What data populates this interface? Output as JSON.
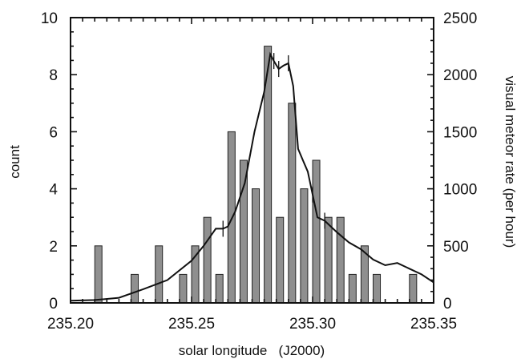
{
  "chart_data": {
    "type": "bar+line",
    "xlabel": "solar longitude   (J2000)",
    "ylabel_left": "count",
    "ylabel_right": "visual meteor rate (per hour)",
    "xlim": [
      235.2,
      235.35
    ],
    "ylim_left": [
      0,
      10
    ],
    "ylim_right": [
      0,
      2500
    ],
    "x_ticks": [
      "235.20",
      "235.25",
      "235.30",
      "235.35"
    ],
    "y_left_ticks": [
      "0",
      "2",
      "4",
      "6",
      "8",
      "10"
    ],
    "y_right_ticks": [
      "0",
      "500",
      "1000",
      "1500",
      "2000",
      "2500"
    ],
    "bars": {
      "name": "count",
      "x": [
        235.2115,
        235.2265,
        235.2365,
        235.2465,
        235.2515,
        235.2565,
        235.2615,
        235.2665,
        235.2715,
        235.2765,
        235.2815,
        235.2865,
        235.2915,
        235.2965,
        235.3015,
        235.3065,
        235.3115,
        235.3165,
        235.3215,
        235.3265,
        235.3415
      ],
      "values": [
        2,
        1,
        2,
        1,
        2,
        3,
        1,
        6,
        5,
        4,
        9,
        3,
        7,
        4,
        5,
        3,
        3,
        1,
        2,
        1,
        1
      ]
    },
    "rate": {
      "name": "visual meteor rate",
      "x": [
        235.2,
        235.21,
        235.22,
        235.23,
        235.24,
        235.25,
        235.255,
        235.26,
        235.263,
        235.265,
        235.268,
        235.272,
        235.276,
        235.28,
        235.2825,
        235.284,
        235.286,
        235.288,
        235.29,
        235.292,
        235.294,
        235.296,
        235.298,
        235.3,
        235.302,
        235.305,
        235.31,
        235.315,
        235.32,
        235.325,
        235.33,
        235.335,
        235.34,
        235.345,
        235.35
      ],
      "values": [
        20,
        25,
        45,
        120,
        200,
        370,
        500,
        650,
        650,
        670,
        800,
        1050,
        1500,
        1850,
        2180,
        2120,
        2050,
        2080,
        2100,
        1900,
        1350,
        1250,
        1150,
        950,
        750,
        720,
        620,
        530,
        470,
        380,
        330,
        350,
        300,
        250,
        180
      ]
    },
    "error_bars_x": [
      235.263,
      235.284,
      235.286,
      235.29,
      235.3,
      235.305
    ],
    "grid": false
  }
}
